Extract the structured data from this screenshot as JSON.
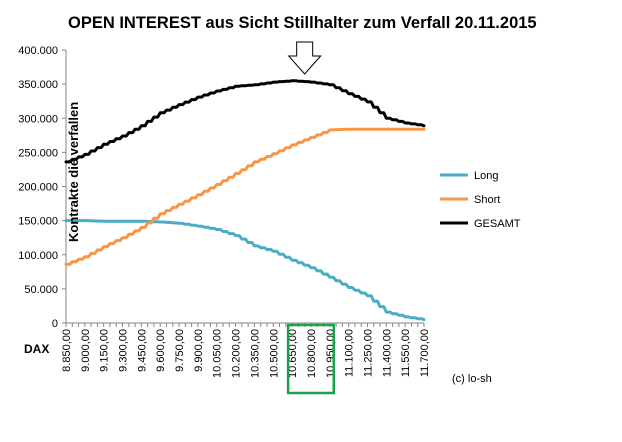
{
  "chart_data": {
    "type": "line",
    "title": "OPEN INTEREST aus Sicht Stillhalter zum Verfall 20.11.2015",
    "ylabel": "Kontrakte   die verfallen",
    "xlabel": "DAX",
    "credit": "(c) lo-sh",
    "ylim": [
      0,
      400000
    ],
    "yticks": [
      "0",
      "50.000",
      "100.000",
      "150.000",
      "200.000",
      "250.000",
      "300.000",
      "350.000",
      "400.000"
    ],
    "xlim": [
      8850,
      11700
    ],
    "xticks": [
      "8.850,00",
      "9.000,00",
      "9.150,00",
      "9.300,00",
      "9.450,00",
      "9.600,00",
      "9.750,00",
      "9.900,00",
      "10.050,00",
      "10.200,00",
      "10.350,00",
      "10.500,00",
      "10.650,00",
      "10.800,00",
      "10.950,00",
      "11.100,00",
      "11.250,00",
      "11.400,00",
      "11.550,00",
      "11.700,00"
    ],
    "highlight_range": [
      10650,
      10950
    ],
    "arrow_at": 10750,
    "legend_position": "right",
    "grid": false,
    "colors": {
      "Long": "#4bacc6",
      "Short": "#f79646",
      "GESAMT": "#000000",
      "highlight": "#17a34a"
    },
    "series": [
      {
        "name": "Long",
        "x": [
          8850,
          9000,
          9150,
          9300,
          9450,
          9600,
          9750,
          9900,
          10050,
          10200,
          10350,
          10500,
          10650,
          10800,
          10950,
          11100,
          11250,
          11400,
          11550,
          11700
        ],
        "values": [
          150000,
          150000,
          149000,
          149000,
          149000,
          148000,
          146000,
          142000,
          137000,
          128000,
          113000,
          105000,
          92000,
          81000,
          67000,
          52000,
          40000,
          16000,
          9000,
          5000
        ]
      },
      {
        "name": "Short",
        "x": [
          8850,
          9000,
          9150,
          9300,
          9450,
          9600,
          9750,
          9900,
          10050,
          10200,
          10350,
          10500,
          10650,
          10800,
          10950,
          11100,
          11250,
          11400,
          11550,
          11700
        ],
        "values": [
          86000,
          97000,
          112000,
          125000,
          140000,
          160000,
          174000,
          188000,
          203000,
          219000,
          236000,
          248000,
          261000,
          272000,
          283000,
          284000,
          284000,
          284000,
          284000,
          284000
        ]
      },
      {
        "name": "GESAMT",
        "x": [
          8850,
          9000,
          9150,
          9300,
          9450,
          9600,
          9750,
          9900,
          10050,
          10200,
          10350,
          10500,
          10650,
          10800,
          10950,
          11100,
          11250,
          11400,
          11550,
          11700
        ],
        "values": [
          236000,
          247000,
          262000,
          274000,
          289000,
          308000,
          320000,
          331000,
          340000,
          347000,
          349000,
          353000,
          355000,
          353000,
          349000,
          336000,
          324000,
          300000,
          293000,
          289000
        ]
      }
    ]
  }
}
